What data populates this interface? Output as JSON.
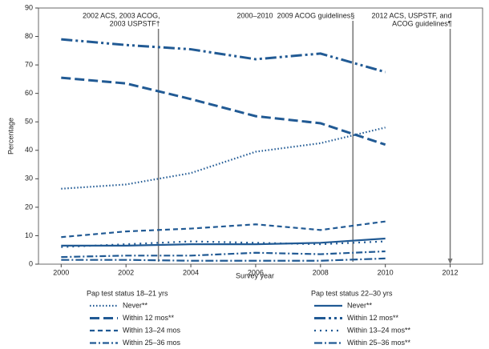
{
  "chart_data": {
    "type": "line",
    "x_label": "Survey year",
    "y_label": "Percentage",
    "x": [
      2000,
      2002,
      2004,
      2006,
      2008,
      2010
    ],
    "xlim": [
      1999.3,
      2013
    ],
    "xticks": [
      2000,
      2002,
      2004,
      2006,
      2008,
      2010,
      2012
    ],
    "ylim": [
      0,
      90
    ],
    "yticks": [
      0,
      10,
      20,
      30,
      40,
      50,
      60,
      70,
      80,
      90
    ],
    "guidelines": [
      {
        "x": 2003,
        "label": [
          "2002 ACS, 2003 ACOG,",
          "2003 USPSTF†"
        ]
      },
      {
        "x": 2009,
        "label": [
          "2009 ACOG guidelines§"
        ]
      },
      {
        "x": 2012,
        "label": [
          "2012 ACS, USPSTF, and",
          "ACOG guidelines¶"
        ]
      }
    ],
    "period_label": "2000–2010",
    "series_groups": [
      {
        "title": "Pap test status 18–21 yrs",
        "series": [
          {
            "name": "Never**",
            "color": "#215a94",
            "style": "dotted",
            "values": [
              26.5,
              28,
              32,
              39.5,
              42.5,
              48
            ]
          },
          {
            "name": "Within 12 mos**",
            "color": "#215a94",
            "style": "longdash",
            "values": [
              65.5,
              63.5,
              58,
              52,
              49.5,
              42
            ]
          },
          {
            "name": "Within 13–24 mos",
            "color": "#215a94",
            "style": "dashed",
            "values": [
              9.5,
              11.5,
              12.5,
              14,
              12,
              15
            ]
          },
          {
            "name": "Within 25–36 mos",
            "color": "#215a94",
            "style": "dashdot",
            "values": [
              2.5,
              3,
              3,
              4,
              3.5,
              4.5
            ]
          }
        ]
      },
      {
        "title": "Pap test status 22–30 yrs",
        "series": [
          {
            "name": "Never**",
            "color": "#215a94",
            "style": "solid",
            "values": [
              6.5,
              6.5,
              7,
              7,
              7.5,
              9
            ]
          },
          {
            "name": "Within 12 mos**",
            "color": "#215a94",
            "style": "dashdotdot",
            "values": [
              79,
              77,
              75.5,
              72,
              74,
              67.5
            ]
          },
          {
            "name": "Within 13–24 mos**",
            "color": "#215a94",
            "style": "sparsedot",
            "values": [
              6,
              7,
              8,
              7.5,
              7,
              8
            ]
          },
          {
            "name": "Within 25–36 mos**",
            "color": "#215a94",
            "style": "dashdotlong",
            "values": [
              1.5,
              1.5,
              1.2,
              1.2,
              1.2,
              2
            ]
          }
        ]
      }
    ]
  }
}
